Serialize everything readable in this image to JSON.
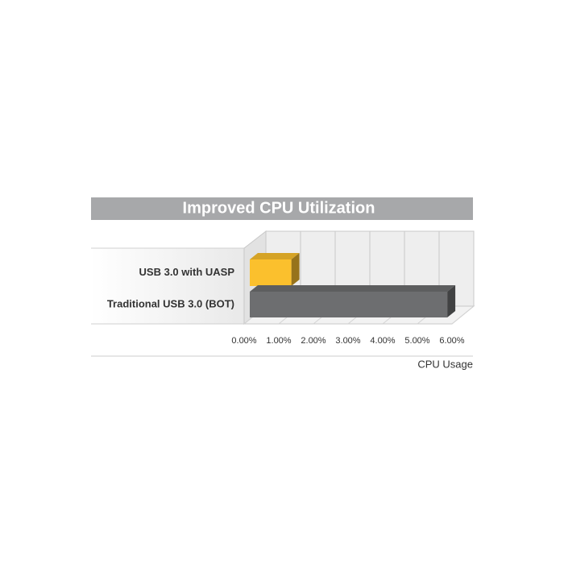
{
  "chart_data": {
    "type": "bar3d",
    "title": "Improved CPU Utilization",
    "categories": [
      "USB 3.0 with UASP",
      "Traditional USB 3.0 (BOT)"
    ],
    "values": [
      1.2,
      5.7
    ],
    "colors": [
      "#fbc02d",
      "#6d6e70"
    ],
    "xlim": [
      0,
      6
    ],
    "xticks": [
      {
        "value": 0,
        "label": "0.00%"
      },
      {
        "value": 1,
        "label": "1.00%"
      },
      {
        "value": 2,
        "label": "2.00%"
      },
      {
        "value": 3,
        "label": "3.00%"
      },
      {
        "value": 4,
        "label": "4.00%"
      },
      {
        "value": 5,
        "label": "5.00%"
      },
      {
        "value": 6,
        "label": "6.00%"
      }
    ],
    "x_label": "CPU Usage",
    "grid": true
  }
}
